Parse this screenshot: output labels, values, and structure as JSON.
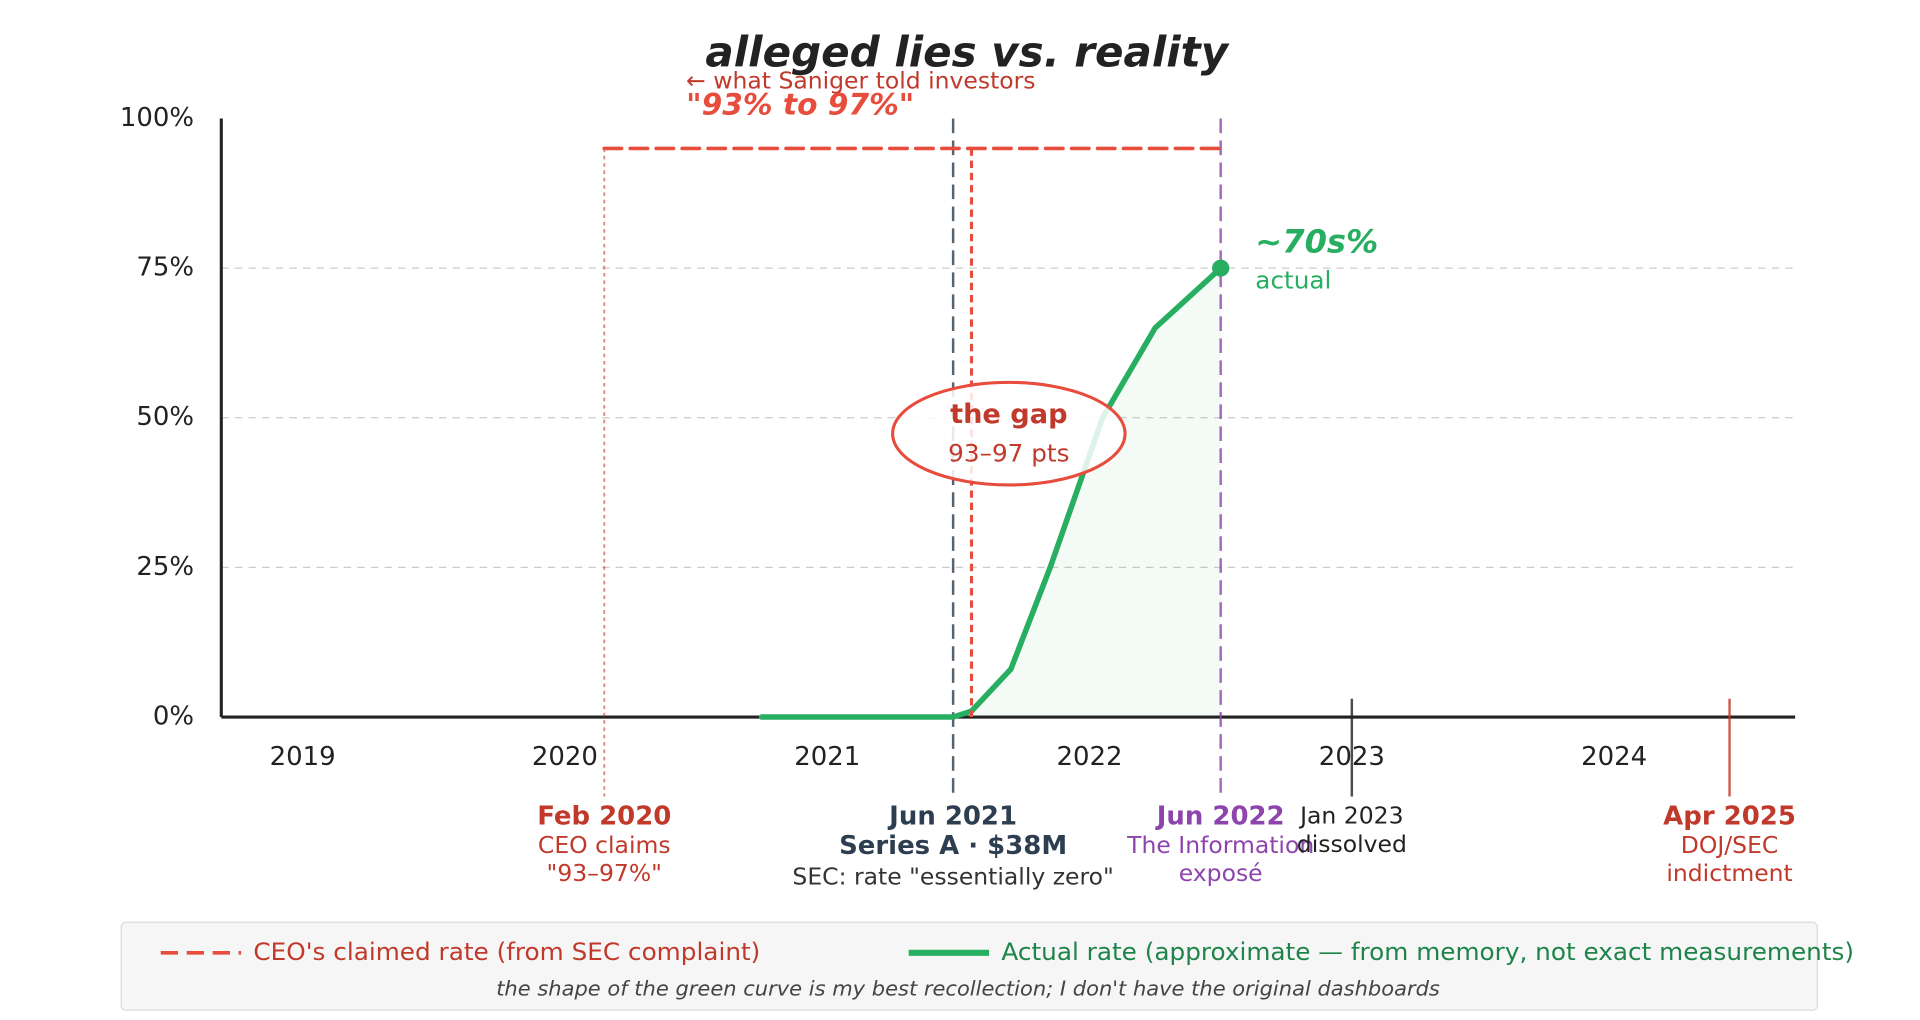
{
  "chart_data": {
    "type": "line",
    "title": "alleged lies vs. reality",
    "xlim": [
      2018.69,
      2024.69
    ],
    "xticks": [
      2019,
      2020,
      2021,
      2022,
      2023,
      2024
    ],
    "ylim": [
      0,
      100
    ],
    "yticks": [
      {
        "value": 0,
        "label": "0%"
      },
      {
        "value": 25,
        "label": "25%"
      },
      {
        "value": 50,
        "label": "50%"
      },
      {
        "value": 75,
        "label": "75%"
      },
      {
        "value": 100,
        "label": "100%"
      }
    ],
    "grid": true,
    "series": [
      {
        "name": "CEO's claimed rate (from SEC complaint)",
        "color": "#e74c3c",
        "style": "dashed",
        "x": [
          2020.15,
          2022.5
        ],
        "values": [
          95,
          95
        ]
      },
      {
        "name": "Actual rate (approximate — from memory, not exact measurements)",
        "color": "#27ae60",
        "style": "solid",
        "x": [
          2020.75,
          2021.48,
          2021.55,
          2021.7,
          2021.85,
          2022.05,
          2022.25,
          2022.5
        ],
        "values": [
          0,
          0,
          1,
          8,
          25,
          50,
          65,
          75
        ]
      }
    ],
    "claim_drop_x": 2021.55,
    "events": [
      {
        "x": 2020.15,
        "title": "Feb 2020",
        "lines": [
          "CEO claims",
          "\"93–97%\""
        ],
        "color": "#c0392b",
        "style": "dotted"
      },
      {
        "x": 2021.48,
        "title": "Jun 2021",
        "subtitle": "Series A · $38M",
        "lines": [
          "SEC: rate \"essentially zero\""
        ],
        "color": "#2c3e50",
        "style": "dashed"
      },
      {
        "x": 2022.5,
        "title": "Jun 2022",
        "lines": [
          "The Information",
          "exposé"
        ],
        "color": "#8e44ad",
        "style": "dashed"
      },
      {
        "x": 2023.0,
        "lines": [
          "Jan 2023",
          "dissolved"
        ],
        "color": "#222222",
        "style": "solid"
      },
      {
        "x": 2024.44,
        "title": "Apr 2025",
        "lines": [
          "DOJ/SEC",
          "indictment"
        ],
        "color": "#c0392b",
        "style": "solid"
      }
    ],
    "claim_note": "← what Saniger told investors",
    "claim_quote": "\"93% to 97%\"",
    "gap_title": "the gap",
    "gap_text": "93–97 pts",
    "actual_label": "~70s%",
    "actual_sub": "actual",
    "footnote": "the shape of the green curve is my best recollection; I don't have the original dashboards"
  }
}
